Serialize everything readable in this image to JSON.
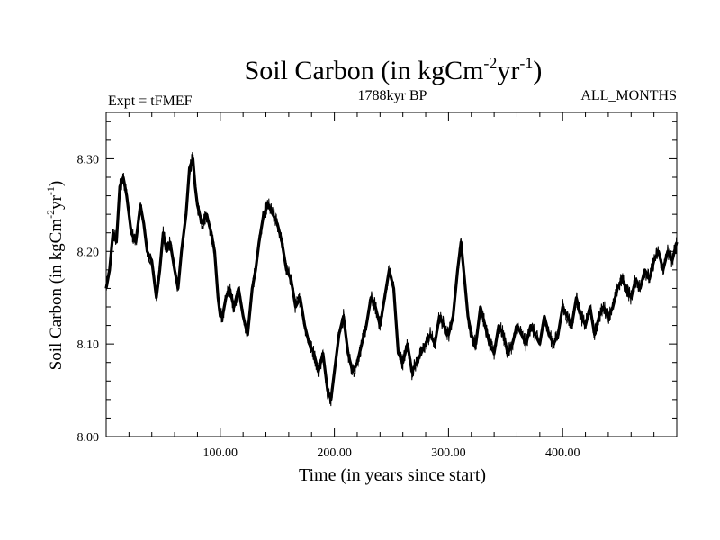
{
  "chart_data": {
    "type": "line",
    "title": {
      "text": "Soil Carbon (in kgCm",
      "sup1": "-2",
      "mid": "yr",
      "sup2": "-1",
      "end": ")"
    },
    "subtitle_left": "Expt = tFMEF",
    "subtitle_center": "1788kyr BP",
    "subtitle_right": "ALL_MONTHS",
    "xlabel": "Time (in years since start)",
    "ylabel": {
      "text": "Soil Carbon (in kgCm",
      "sup1": "-2",
      "mid": "yr",
      "sup2": "-1",
      "end": ")"
    },
    "xlim": [
      0,
      500
    ],
    "ylim": [
      8.0,
      8.35
    ],
    "x_ticks": [
      {
        "value": 100,
        "label": "100.00"
      },
      {
        "value": 200,
        "label": "200.00"
      },
      {
        "value": 300,
        "label": "300.00"
      },
      {
        "value": 400,
        "label": "400.00"
      }
    ],
    "x_minor_step": 20,
    "y_ticks": [
      {
        "value": 8.0,
        "label": "8.00"
      },
      {
        "value": 8.1,
        "label": "8.10"
      },
      {
        "value": 8.2,
        "label": "8.20"
      },
      {
        "value": 8.3,
        "label": "8.30"
      }
    ],
    "y_minor_step": 0.02,
    "grid": false,
    "series": [
      {
        "name": "Soil Carbon",
        "color": "#000000",
        "x": [
          0,
          3,
          6,
          9,
          12,
          15,
          18,
          22,
          26,
          30,
          33,
          36,
          40,
          44,
          47,
          50,
          53,
          56,
          60,
          63,
          66,
          70,
          73,
          76,
          78,
          80,
          84,
          88,
          92,
          95,
          98,
          100,
          102,
          105,
          108,
          112,
          116,
          120,
          124,
          128,
          131,
          134,
          138,
          142,
          146,
          150,
          154,
          158,
          162,
          166,
          170,
          174,
          178,
          182,
          186,
          190,
          194,
          197,
          200,
          204,
          208,
          212,
          216,
          220,
          224,
          228,
          232,
          236,
          240,
          244,
          248,
          252,
          256,
          260,
          264,
          268,
          272,
          276,
          280,
          284,
          288,
          292,
          296,
          300,
          304,
          308,
          311,
          314,
          317,
          320,
          324,
          328,
          332,
          336,
          340,
          344,
          348,
          352,
          356,
          360,
          364,
          368,
          372,
          376,
          380,
          384,
          388,
          392,
          396,
          400,
          404,
          408,
          412,
          416,
          420,
          424,
          428,
          432,
          436,
          440,
          444,
          448,
          452,
          456,
          460,
          464,
          468,
          472,
          476,
          480,
          484,
          488,
          492,
          496,
          500
        ],
        "y": [
          8.16,
          8.18,
          8.22,
          8.21,
          8.27,
          8.28,
          8.26,
          8.22,
          8.21,
          8.25,
          8.23,
          8.2,
          8.19,
          8.15,
          8.18,
          8.22,
          8.2,
          8.21,
          8.18,
          8.16,
          8.2,
          8.24,
          8.29,
          8.3,
          8.27,
          8.25,
          8.23,
          8.24,
          8.22,
          8.2,
          8.15,
          8.13,
          8.13,
          8.15,
          8.16,
          8.14,
          8.16,
          8.13,
          8.11,
          8.16,
          8.18,
          8.21,
          8.24,
          8.25,
          8.24,
          8.23,
          8.21,
          8.18,
          8.17,
          8.14,
          8.15,
          8.12,
          8.1,
          8.09,
          8.07,
          8.09,
          8.05,
          8.04,
          8.07,
          8.11,
          8.13,
          8.09,
          8.07,
          8.08,
          8.1,
          8.12,
          8.15,
          8.14,
          8.12,
          8.15,
          8.18,
          8.16,
          8.09,
          8.08,
          8.1,
          8.07,
          8.08,
          8.09,
          8.1,
          8.11,
          8.1,
          8.13,
          8.12,
          8.11,
          8.13,
          8.18,
          8.21,
          8.17,
          8.13,
          8.11,
          8.1,
          8.14,
          8.12,
          8.1,
          8.09,
          8.12,
          8.11,
          8.09,
          8.1,
          8.12,
          8.11,
          8.1,
          8.12,
          8.11,
          8.1,
          8.13,
          8.11,
          8.1,
          8.11,
          8.14,
          8.13,
          8.12,
          8.15,
          8.13,
          8.12,
          8.14,
          8.11,
          8.13,
          8.14,
          8.13,
          8.14,
          8.16,
          8.17,
          8.16,
          8.15,
          8.17,
          8.16,
          8.18,
          8.17,
          8.19,
          8.2,
          8.18,
          8.2,
          8.19,
          8.21
        ]
      }
    ]
  }
}
